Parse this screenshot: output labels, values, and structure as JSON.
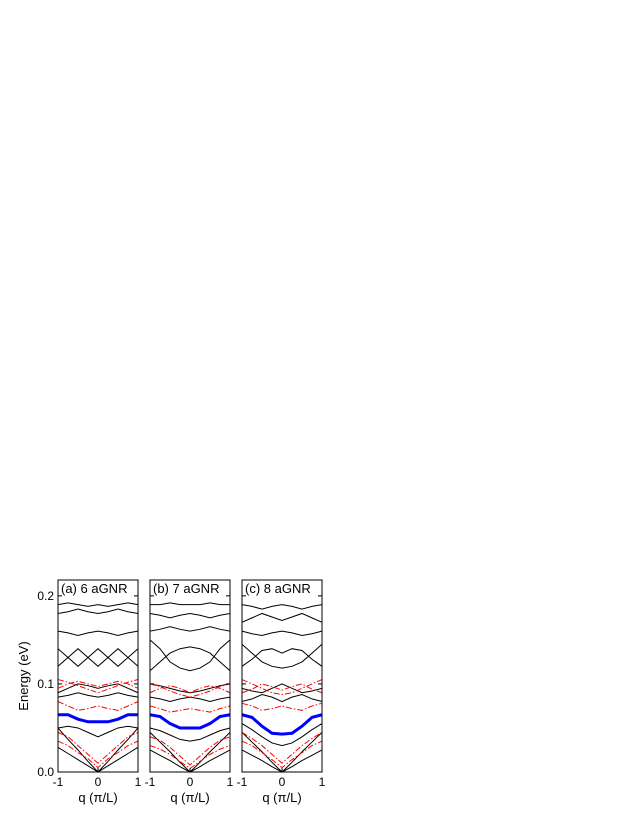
{
  "chart_data": [
    {
      "type": "line",
      "title": "(a)   6 aGNR",
      "xlabel": "q (π/L)",
      "ylabel": "Energy (eV)",
      "xlim": [
        -1,
        1
      ],
      "ylim": [
        0,
        0.218
      ],
      "xticks": [
        -1,
        0,
        1
      ],
      "yticks": [
        {
          "value": 0,
          "label": "0.0"
        },
        {
          "value": 0.1,
          "label": "0.1"
        },
        {
          "value": 0.2,
          "label": "0.2"
        }
      ],
      "x": [
        -1,
        -0.75,
        -0.5,
        -0.25,
        0,
        0.25,
        0.5,
        0.75,
        1
      ],
      "series": [
        {
          "color": "#000000",
          "style": "solid",
          "values": [
            0.05,
            0.037,
            0.025,
            0.012,
            0,
            0.012,
            0.025,
            0.037,
            0.05
          ]
        },
        {
          "color": "#000000",
          "style": "solid",
          "values": [
            0.028,
            0.021,
            0.014,
            0.007,
            0,
            0.007,
            0.014,
            0.021,
            0.028
          ]
        },
        {
          "color": "#000000",
          "style": "solid",
          "values": [
            0.05,
            0.052,
            0.05,
            0.045,
            0.04,
            0.045,
            0.05,
            0.052,
            0.05
          ]
        },
        {
          "color": "#000000",
          "style": "solid",
          "values": [
            0.085,
            0.087,
            0.09,
            0.087,
            0.085,
            0.087,
            0.09,
            0.087,
            0.085
          ]
        },
        {
          "color": "#000000",
          "style": "solid",
          "values": [
            0.09,
            0.095,
            0.1,
            0.098,
            0.095,
            0.098,
            0.1,
            0.095,
            0.09
          ]
        },
        {
          "color": "#000000",
          "style": "solid",
          "values": [
            0.12,
            0.13,
            0.14,
            0.13,
            0.12,
            0.13,
            0.14,
            0.13,
            0.12
          ]
        },
        {
          "color": "#000000",
          "style": "solid",
          "values": [
            0.14,
            0.13,
            0.12,
            0.13,
            0.14,
            0.13,
            0.12,
            0.13,
            0.14
          ]
        },
        {
          "color": "#000000",
          "style": "solid",
          "values": [
            0.16,
            0.158,
            0.155,
            0.158,
            0.16,
            0.158,
            0.155,
            0.158,
            0.16
          ]
        },
        {
          "color": "#000000",
          "style": "solid",
          "values": [
            0.18,
            0.182,
            0.185,
            0.182,
            0.18,
            0.182,
            0.185,
            0.182,
            0.18
          ]
        },
        {
          "color": "#000000",
          "style": "solid",
          "values": [
            0.19,
            0.192,
            0.19,
            0.188,
            0.19,
            0.188,
            0.19,
            0.192,
            0.19
          ]
        },
        {
          "color": "#ff0000",
          "style": "dashdot",
          "values": [
            0.045,
            0.04,
            0.03,
            0.02,
            0.01,
            0.02,
            0.03,
            0.04,
            0.045
          ]
        },
        {
          "color": "#ff0000",
          "style": "dashdot",
          "values": [
            0.035,
            0.03,
            0.022,
            0.015,
            0.005,
            0.015,
            0.022,
            0.03,
            0.035
          ]
        },
        {
          "color": "#ff0000",
          "style": "dashdot",
          "values": [
            0.08,
            0.075,
            0.07,
            0.072,
            0.075,
            0.072,
            0.07,
            0.075,
            0.08
          ]
        },
        {
          "color": "#ff0000",
          "style": "dashdot",
          "values": [
            0.095,
            0.1,
            0.103,
            0.1,
            0.097,
            0.1,
            0.103,
            0.1,
            0.095
          ]
        },
        {
          "color": "#ff0000",
          "style": "dashdot",
          "values": [
            0.105,
            0.102,
            0.098,
            0.094,
            0.09,
            0.094,
            0.098,
            0.102,
            0.105
          ]
        },
        {
          "color": "#0000ff",
          "style": "thick",
          "values": [
            0.065,
            0.065,
            0.06,
            0.057,
            0.057,
            0.057,
            0.06,
            0.065,
            0.065
          ]
        }
      ]
    },
    {
      "type": "line",
      "title": "(b)   7 aGNR",
      "xlabel": "q (π/L)",
      "xlim": [
        -1,
        1
      ],
      "ylim": [
        0,
        0.218
      ],
      "xticks": [
        -1,
        0,
        1
      ],
      "yticks": [
        0,
        0.1,
        0.2
      ],
      "x": [
        -1,
        -0.75,
        -0.5,
        -0.25,
        0,
        0.25,
        0.5,
        0.75,
        1
      ],
      "series": [
        {
          "color": "#000000",
          "style": "solid",
          "values": [
            0.045,
            0.034,
            0.023,
            0.011,
            0,
            0.011,
            0.023,
            0.034,
            0.045
          ]
        },
        {
          "color": "#000000",
          "style": "solid",
          "values": [
            0.025,
            0.019,
            0.013,
            0.006,
            0,
            0.006,
            0.013,
            0.019,
            0.025
          ]
        },
        {
          "color": "#000000",
          "style": "solid",
          "values": [
            0.05,
            0.047,
            0.042,
            0.037,
            0.035,
            0.037,
            0.042,
            0.047,
            0.05
          ]
        },
        {
          "color": "#000000",
          "style": "solid",
          "values": [
            0.085,
            0.083,
            0.08,
            0.083,
            0.085,
            0.083,
            0.08,
            0.083,
            0.085
          ]
        },
        {
          "color": "#000000",
          "style": "solid",
          "values": [
            0.1,
            0.098,
            0.095,
            0.092,
            0.09,
            0.092,
            0.095,
            0.098,
            0.1
          ]
        },
        {
          "color": "#000000",
          "style": "solid",
          "values": [
            0.115,
            0.125,
            0.135,
            0.14,
            0.142,
            0.14,
            0.135,
            0.125,
            0.115
          ]
        },
        {
          "color": "#000000",
          "style": "solid",
          "values": [
            0.15,
            0.14,
            0.125,
            0.118,
            0.115,
            0.118,
            0.125,
            0.14,
            0.15
          ]
        },
        {
          "color": "#000000",
          "style": "solid",
          "values": [
            0.16,
            0.162,
            0.165,
            0.162,
            0.16,
            0.162,
            0.165,
            0.162,
            0.16
          ]
        },
        {
          "color": "#000000",
          "style": "solid",
          "values": [
            0.18,
            0.178,
            0.175,
            0.178,
            0.18,
            0.178,
            0.175,
            0.178,
            0.18
          ]
        },
        {
          "color": "#000000",
          "style": "solid",
          "values": [
            0.19,
            0.19,
            0.192,
            0.19,
            0.19,
            0.19,
            0.192,
            0.19,
            0.19
          ]
        },
        {
          "color": "#ff0000",
          "style": "dashdot",
          "values": [
            0.04,
            0.036,
            0.028,
            0.018,
            0.008,
            0.018,
            0.028,
            0.036,
            0.04
          ]
        },
        {
          "color": "#ff0000",
          "style": "dashdot",
          "values": [
            0.03,
            0.026,
            0.02,
            0.012,
            0.004,
            0.012,
            0.02,
            0.026,
            0.03
          ]
        },
        {
          "color": "#ff0000",
          "style": "dashdot",
          "values": [
            0.075,
            0.072,
            0.068,
            0.07,
            0.072,
            0.07,
            0.068,
            0.072,
            0.075
          ]
        },
        {
          "color": "#ff0000",
          "style": "dashdot",
          "values": [
            0.09,
            0.095,
            0.098,
            0.095,
            0.09,
            0.095,
            0.098,
            0.095,
            0.09
          ]
        },
        {
          "color": "#ff0000",
          "style": "dashdot",
          "values": [
            0.1,
            0.097,
            0.092,
            0.088,
            0.085,
            0.088,
            0.092,
            0.097,
            0.1
          ]
        },
        {
          "color": "#0000ff",
          "style": "thick",
          "values": [
            0.065,
            0.063,
            0.055,
            0.05,
            0.05,
            0.05,
            0.055,
            0.063,
            0.065
          ]
        }
      ]
    },
    {
      "type": "line",
      "title": "(c)   8 aGNR",
      "xlabel": "q (π/L)",
      "xlim": [
        -1,
        1
      ],
      "ylim": [
        0,
        0.218
      ],
      "xticks": [
        -1,
        0,
        1
      ],
      "yticks": [
        0,
        0.1,
        0.2
      ],
      "x": [
        -1,
        -0.75,
        -0.5,
        -0.25,
        0,
        0.25,
        0.5,
        0.75,
        1
      ],
      "series": [
        {
          "color": "#000000",
          "style": "solid",
          "values": [
            0.045,
            0.034,
            0.023,
            0.011,
            0,
            0.011,
            0.023,
            0.034,
            0.045
          ]
        },
        {
          "color": "#000000",
          "style": "solid",
          "values": [
            0.025,
            0.019,
            0.013,
            0.006,
            0,
            0.006,
            0.013,
            0.019,
            0.025
          ]
        },
        {
          "color": "#000000",
          "style": "solid",
          "values": [
            0.055,
            0.048,
            0.04,
            0.033,
            0.03,
            0.033,
            0.04,
            0.048,
            0.055
          ]
        },
        {
          "color": "#000000",
          "style": "solid",
          "values": [
            0.08,
            0.083,
            0.088,
            0.085,
            0.08,
            0.085,
            0.088,
            0.083,
            0.08
          ]
        },
        {
          "color": "#000000",
          "style": "solid",
          "values": [
            0.095,
            0.092,
            0.09,
            0.095,
            0.1,
            0.095,
            0.09,
            0.092,
            0.095
          ]
        },
        {
          "color": "#000000",
          "style": "solid",
          "values": [
            0.12,
            0.128,
            0.138,
            0.14,
            0.135,
            0.14,
            0.138,
            0.128,
            0.12
          ]
        },
        {
          "color": "#000000",
          "style": "solid",
          "values": [
            0.145,
            0.135,
            0.125,
            0.12,
            0.118,
            0.12,
            0.125,
            0.135,
            0.145
          ]
        },
        {
          "color": "#000000",
          "style": "solid",
          "values": [
            0.16,
            0.157,
            0.155,
            0.158,
            0.16,
            0.158,
            0.155,
            0.157,
            0.16
          ]
        },
        {
          "color": "#000000",
          "style": "solid",
          "values": [
            0.17,
            0.175,
            0.18,
            0.176,
            0.172,
            0.176,
            0.18,
            0.175,
            0.17
          ]
        },
        {
          "color": "#000000",
          "style": "solid",
          "values": [
            0.19,
            0.188,
            0.185,
            0.188,
            0.19,
            0.188,
            0.185,
            0.188,
            0.19
          ]
        },
        {
          "color": "#ff0000",
          "style": "dashdot",
          "values": [
            0.045,
            0.038,
            0.03,
            0.02,
            0.01,
            0.02,
            0.03,
            0.038,
            0.045
          ]
        },
        {
          "color": "#ff0000",
          "style": "dashdot",
          "values": [
            0.035,
            0.03,
            0.022,
            0.014,
            0.005,
            0.014,
            0.022,
            0.03,
            0.035
          ]
        },
        {
          "color": "#ff0000",
          "style": "dashdot",
          "values": [
            0.078,
            0.075,
            0.07,
            0.072,
            0.075,
            0.072,
            0.07,
            0.075,
            0.078
          ]
        },
        {
          "color": "#ff0000",
          "style": "dashdot",
          "values": [
            0.09,
            0.094,
            0.1,
            0.097,
            0.093,
            0.097,
            0.1,
            0.094,
            0.09
          ]
        },
        {
          "color": "#ff0000",
          "style": "dashdot",
          "values": [
            0.105,
            0.1,
            0.095,
            0.09,
            0.088,
            0.09,
            0.095,
            0.1,
            0.105
          ]
        },
        {
          "color": "#0000ff",
          "style": "thick",
          "values": [
            0.065,
            0.062,
            0.052,
            0.044,
            0.043,
            0.044,
            0.052,
            0.062,
            0.065
          ]
        }
      ]
    }
  ]
}
